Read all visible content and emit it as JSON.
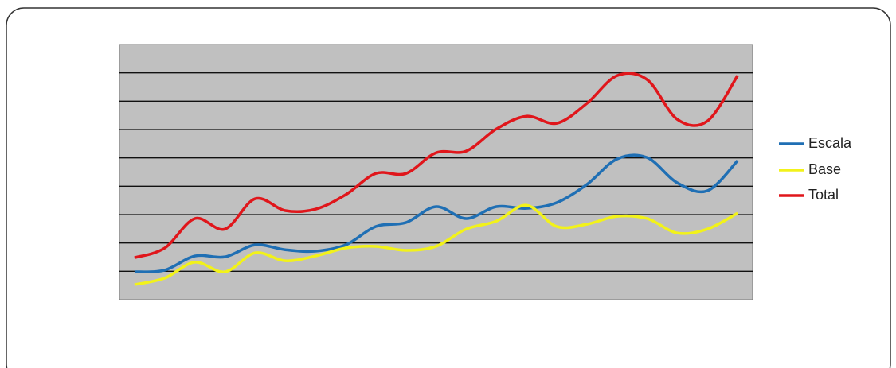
{
  "chart_data": {
    "type": "line",
    "categories": [
      null,
      null,
      null,
      null,
      null,
      null,
      null,
      null,
      null,
      null,
      null,
      null,
      null,
      null,
      null,
      null,
      null,
      null,
      null,
      null,
      null
    ],
    "series": [
      {
        "name": "Escala",
        "color": "#1f6fb4",
        "values": [
          0.98,
          1.04,
          1.54,
          1.51,
          1.93,
          1.76,
          1.71,
          1.93,
          2.58,
          2.72,
          3.28,
          2.86,
          3.28,
          3.22,
          3.42,
          4.06,
          4.96,
          5.01,
          4.12,
          3.84,
          4.9
        ]
      },
      {
        "name": "Base",
        "color": "#f2f21a",
        "values": [
          0.53,
          0.76,
          1.32,
          0.98,
          1.65,
          1.37,
          1.54,
          1.82,
          1.88,
          1.74,
          1.88,
          2.49,
          2.77,
          3.33,
          2.58,
          2.66,
          2.94,
          2.86,
          2.35,
          2.49,
          3.05
        ]
      },
      {
        "name": "Total",
        "color": "#e0161b",
        "values": [
          1.48,
          1.82,
          2.86,
          2.49,
          3.56,
          3.14,
          3.19,
          3.7,
          4.45,
          4.45,
          5.18,
          5.24,
          6.02,
          6.47,
          6.22,
          6.92,
          7.9,
          7.76,
          6.36,
          6.3,
          7.9
        ]
      }
    ],
    "ylim": [
      0,
      9
    ],
    "yticks": [
      1,
      2,
      3,
      4,
      5,
      6,
      7,
      8
    ],
    "grid": true,
    "legend": "right"
  }
}
